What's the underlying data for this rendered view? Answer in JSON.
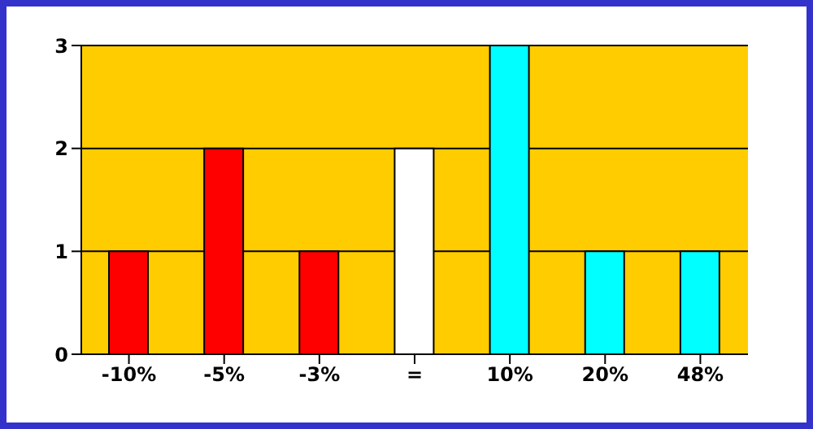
{
  "chart_data": {
    "type": "bar",
    "categories": [
      "-10%",
      "-5%",
      "-3%",
      "=",
      "10%",
      "20%",
      "48%"
    ],
    "values": [
      1,
      2,
      1,
      2,
      3,
      1,
      1
    ],
    "colors": [
      "#ff0000",
      "#ff0000",
      "#ff0000",
      "#ffffff",
      "#00ffff",
      "#00ffff",
      "#00ffff"
    ],
    "ylim": [
      0,
      3
    ],
    "yticks": [
      0,
      1,
      2,
      3
    ],
    "grid": "y"
  }
}
